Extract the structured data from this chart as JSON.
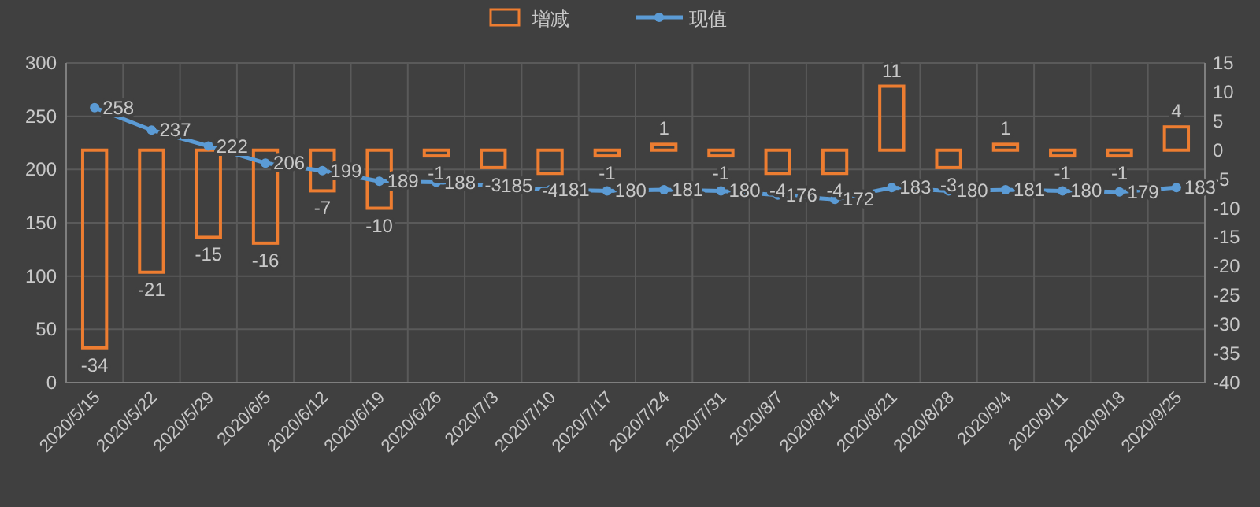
{
  "chart_data": {
    "type": "bar",
    "categories": [
      "2020/5/15",
      "2020/5/22",
      "2020/5/29",
      "2020/6/5",
      "2020/6/12",
      "2020/6/19",
      "2020/6/26",
      "2020/7/3",
      "2020/7/10",
      "2020/7/17",
      "2020/7/24",
      "2020/7/31",
      "2020/8/7",
      "2020/8/14",
      "2020/8/21",
      "2020/8/28",
      "2020/9/4",
      "2020/9/11",
      "2020/9/18",
      "2020/9/25"
    ],
    "series": [
      {
        "name": "增减",
        "axis": "y2",
        "color": "#ed7d31",
        "values": [
          -34,
          -21,
          -15,
          -16,
          -7,
          -10,
          -1,
          -3,
          -4,
          -1,
          1,
          -1,
          -4,
          -4,
          11,
          -3,
          1,
          -1,
          -1,
          4
        ]
      },
      {
        "name": "现值",
        "type": "line",
        "color": "#5b9bd5",
        "marker": "circle",
        "values": [
          258,
          237,
          222,
          206,
          199,
          189,
          188,
          185,
          181,
          180,
          181,
          180,
          176,
          172,
          183,
          180,
          181,
          180,
          179,
          183
        ]
      }
    ],
    "ylim": [
      0,
      300
    ],
    "yticks": [
      0,
      50,
      100,
      150,
      200,
      250,
      300
    ],
    "y2lim": [
      -40,
      15
    ],
    "y2ticks": [
      -40,
      -35,
      -30,
      -25,
      -20,
      -15,
      -10,
      -5,
      0,
      5,
      10,
      15
    ],
    "grid": true,
    "legend": "top",
    "data_labels": true
  }
}
